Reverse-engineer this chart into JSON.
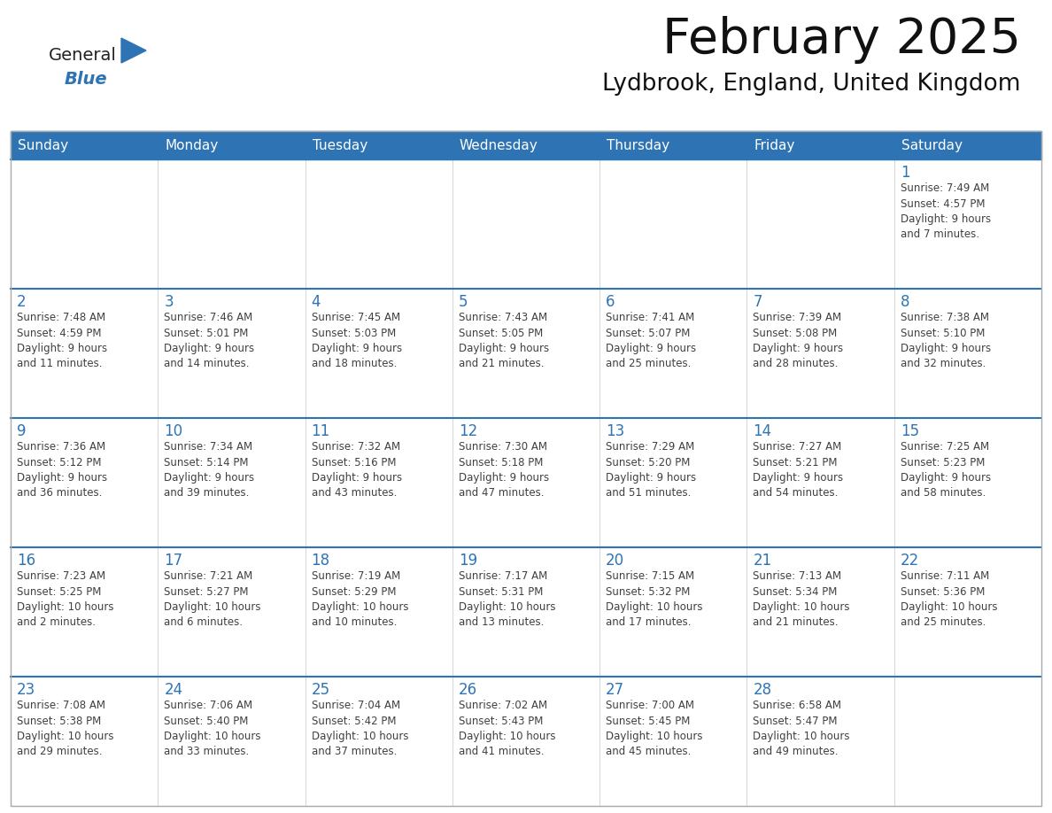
{
  "title": "February 2025",
  "subtitle": "Lydbrook, England, United Kingdom",
  "header_bg": "#2e74b5",
  "header_text_color": "#ffffff",
  "day_number_color": "#2e74b5",
  "text_color": "#404040",
  "border_color": "#cccccc",
  "week_sep_color": "#2e74b5",
  "header_days": [
    "Sunday",
    "Monday",
    "Tuesday",
    "Wednesday",
    "Thursday",
    "Friday",
    "Saturday"
  ],
  "weeks": [
    [
      {
        "day": null,
        "info": null
      },
      {
        "day": null,
        "info": null
      },
      {
        "day": null,
        "info": null
      },
      {
        "day": null,
        "info": null
      },
      {
        "day": null,
        "info": null
      },
      {
        "day": null,
        "info": null
      },
      {
        "day": 1,
        "info": "Sunrise: 7:49 AM\nSunset: 4:57 PM\nDaylight: 9 hours\nand 7 minutes."
      }
    ],
    [
      {
        "day": 2,
        "info": "Sunrise: 7:48 AM\nSunset: 4:59 PM\nDaylight: 9 hours\nand 11 minutes."
      },
      {
        "day": 3,
        "info": "Sunrise: 7:46 AM\nSunset: 5:01 PM\nDaylight: 9 hours\nand 14 minutes."
      },
      {
        "day": 4,
        "info": "Sunrise: 7:45 AM\nSunset: 5:03 PM\nDaylight: 9 hours\nand 18 minutes."
      },
      {
        "day": 5,
        "info": "Sunrise: 7:43 AM\nSunset: 5:05 PM\nDaylight: 9 hours\nand 21 minutes."
      },
      {
        "day": 6,
        "info": "Sunrise: 7:41 AM\nSunset: 5:07 PM\nDaylight: 9 hours\nand 25 minutes."
      },
      {
        "day": 7,
        "info": "Sunrise: 7:39 AM\nSunset: 5:08 PM\nDaylight: 9 hours\nand 28 minutes."
      },
      {
        "day": 8,
        "info": "Sunrise: 7:38 AM\nSunset: 5:10 PM\nDaylight: 9 hours\nand 32 minutes."
      }
    ],
    [
      {
        "day": 9,
        "info": "Sunrise: 7:36 AM\nSunset: 5:12 PM\nDaylight: 9 hours\nand 36 minutes."
      },
      {
        "day": 10,
        "info": "Sunrise: 7:34 AM\nSunset: 5:14 PM\nDaylight: 9 hours\nand 39 minutes."
      },
      {
        "day": 11,
        "info": "Sunrise: 7:32 AM\nSunset: 5:16 PM\nDaylight: 9 hours\nand 43 minutes."
      },
      {
        "day": 12,
        "info": "Sunrise: 7:30 AM\nSunset: 5:18 PM\nDaylight: 9 hours\nand 47 minutes."
      },
      {
        "day": 13,
        "info": "Sunrise: 7:29 AM\nSunset: 5:20 PM\nDaylight: 9 hours\nand 51 minutes."
      },
      {
        "day": 14,
        "info": "Sunrise: 7:27 AM\nSunset: 5:21 PM\nDaylight: 9 hours\nand 54 minutes."
      },
      {
        "day": 15,
        "info": "Sunrise: 7:25 AM\nSunset: 5:23 PM\nDaylight: 9 hours\nand 58 minutes."
      }
    ],
    [
      {
        "day": 16,
        "info": "Sunrise: 7:23 AM\nSunset: 5:25 PM\nDaylight: 10 hours\nand 2 minutes."
      },
      {
        "day": 17,
        "info": "Sunrise: 7:21 AM\nSunset: 5:27 PM\nDaylight: 10 hours\nand 6 minutes."
      },
      {
        "day": 18,
        "info": "Sunrise: 7:19 AM\nSunset: 5:29 PM\nDaylight: 10 hours\nand 10 minutes."
      },
      {
        "day": 19,
        "info": "Sunrise: 7:17 AM\nSunset: 5:31 PM\nDaylight: 10 hours\nand 13 minutes."
      },
      {
        "day": 20,
        "info": "Sunrise: 7:15 AM\nSunset: 5:32 PM\nDaylight: 10 hours\nand 17 minutes."
      },
      {
        "day": 21,
        "info": "Sunrise: 7:13 AM\nSunset: 5:34 PM\nDaylight: 10 hours\nand 21 minutes."
      },
      {
        "day": 22,
        "info": "Sunrise: 7:11 AM\nSunset: 5:36 PM\nDaylight: 10 hours\nand 25 minutes."
      }
    ],
    [
      {
        "day": 23,
        "info": "Sunrise: 7:08 AM\nSunset: 5:38 PM\nDaylight: 10 hours\nand 29 minutes."
      },
      {
        "day": 24,
        "info": "Sunrise: 7:06 AM\nSunset: 5:40 PM\nDaylight: 10 hours\nand 33 minutes."
      },
      {
        "day": 25,
        "info": "Sunrise: 7:04 AM\nSunset: 5:42 PM\nDaylight: 10 hours\nand 37 minutes."
      },
      {
        "day": 26,
        "info": "Sunrise: 7:02 AM\nSunset: 5:43 PM\nDaylight: 10 hours\nand 41 minutes."
      },
      {
        "day": 27,
        "info": "Sunrise: 7:00 AM\nSunset: 5:45 PM\nDaylight: 10 hours\nand 45 minutes."
      },
      {
        "day": 28,
        "info": "Sunrise: 6:58 AM\nSunset: 5:47 PM\nDaylight: 10 hours\nand 49 minutes."
      },
      {
        "day": null,
        "info": null
      }
    ]
  ],
  "logo_text_general": "General",
  "logo_text_blue": "Blue",
  "logo_color_general": "#222222",
  "logo_color_blue": "#2e74b5",
  "logo_triangle_color": "#2e74b5"
}
